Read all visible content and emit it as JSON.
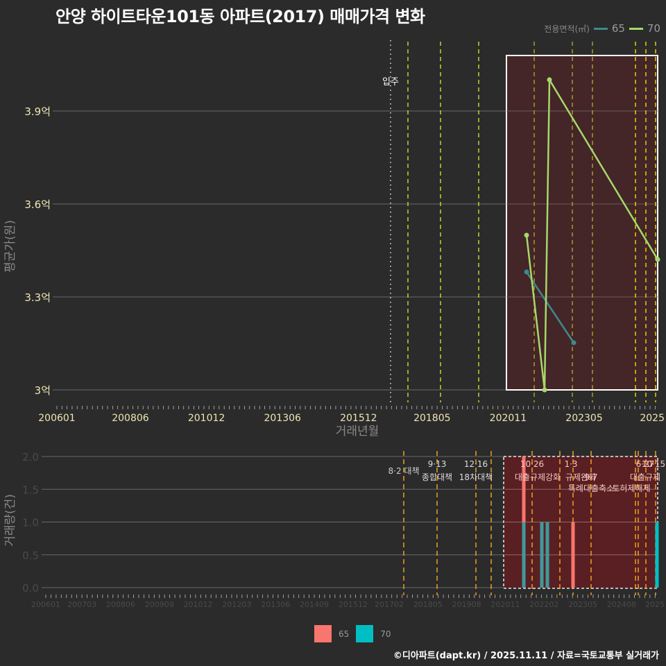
{
  "title": "안양 하이트타운101동 아파트(2017) 매매가격 변화",
  "footer": "©디아파트(dapt.kr) / 2025.11.11 / 자료=국토교통부 실거래가",
  "legend_top": {
    "title": "전용면적(㎡)",
    "items": [
      {
        "label": "65",
        "color": "#3f8a8c"
      },
      {
        "label": "70",
        "color": "#a6d96a"
      }
    ]
  },
  "legend_bottom": {
    "items": [
      {
        "label": "65",
        "color": "#f8766d"
      },
      {
        "label": "70",
        "color": "#00bfc4"
      }
    ]
  },
  "chart_data": [
    {
      "type": "line",
      "title": "안양 하이트타운101동 아파트(2017) 매매가격 변화",
      "xlabel": "거래년월",
      "ylabel": "평균가(원)",
      "x_tick_labels": [
        "200601",
        "200806",
        "201012",
        "201306",
        "201512",
        "201805",
        "202011",
        "202305",
        "2025"
      ],
      "y_tick_labels": [
        "3억",
        "3.3억",
        "3.6억",
        "3.9억"
      ],
      "ylim": [
        2.96,
        4.05
      ],
      "grid": true,
      "annotation": {
        "label": "입주",
        "x": "201705"
      },
      "highlight_box": {
        "x_start": "202011",
        "x_end": "202510",
        "y_start": 3.0,
        "y_end": 4.08
      },
      "series": [
        {
          "name": "65",
          "color": "#3f8a8c",
          "points": [
            {
              "x": "202111",
              "y": 3.38
            },
            {
              "x": "202303",
              "y": 3.15
            }
          ]
        },
        {
          "name": "70",
          "color": "#a6d96a",
          "points": [
            {
              "x": "202111",
              "y": 3.5
            },
            {
              "x": "202204",
              "y": 3.0
            },
            {
              "x": "202205",
              "y": 4.0
            },
            {
              "x": "202510",
              "y": 3.42
            }
          ]
        }
      ],
      "policy_lines": [
        "201708",
        "201809",
        "201912",
        "202110",
        "202301",
        "202309",
        "202407",
        "202502",
        "202506",
        "202510"
      ]
    },
    {
      "type": "bar",
      "title": "",
      "xlabel": "",
      "ylabel": "거래량(건)",
      "x_tick_labels": [
        "200601",
        "200703",
        "200806",
        "200909",
        "201012",
        "201203",
        "201306",
        "201409",
        "201512",
        "201702",
        "201805",
        "201908",
        "202011",
        "202202",
        "202305",
        "202408",
        "2025"
      ],
      "y_tick_labels": [
        "0.0",
        "0.5",
        "1.0",
        "1.5",
        "2.0"
      ],
      "ylim": [
        0,
        2
      ],
      "stacked": true,
      "series": [
        {
          "name": "65",
          "color": "#f8766d",
          "values": [
            {
              "x": "202111",
              "y": 1
            },
            {
              "x": "202303",
              "y": 1
            }
          ]
        },
        {
          "name": "70",
          "color": "#00bfc4",
          "values": [
            {
              "x": "202111",
              "y": 1
            },
            {
              "x": "202204",
              "y": 1
            },
            {
              "x": "202205",
              "y": 1
            },
            {
              "x": "202510",
              "y": 1
            }
          ]
        }
      ],
      "policy_annotations": [
        {
          "x": "201708",
          "date": "8·2",
          "label": "대책"
        },
        {
          "x": "201809",
          "date": "9·13",
          "label": "종합대책"
        },
        {
          "x": "201912",
          "date": "12·16",
          "label": "18차대책"
        },
        {
          "x": "202110",
          "date": "10·26",
          "label": "대출규제강화"
        },
        {
          "x": "202301",
          "date": "1·3",
          "label": "규제완화"
        },
        {
          "x": "202309",
          "date": "9·7",
          "label": "특례대출축소"
        },
        {
          "x": "202502",
          "date": "",
          "label": "토허제해제"
        },
        {
          "x": "202506",
          "date": "6·27",
          "label": "대출규제"
        },
        {
          "x": "202510",
          "date": "10·15",
          "label": ""
        }
      ]
    }
  ]
}
